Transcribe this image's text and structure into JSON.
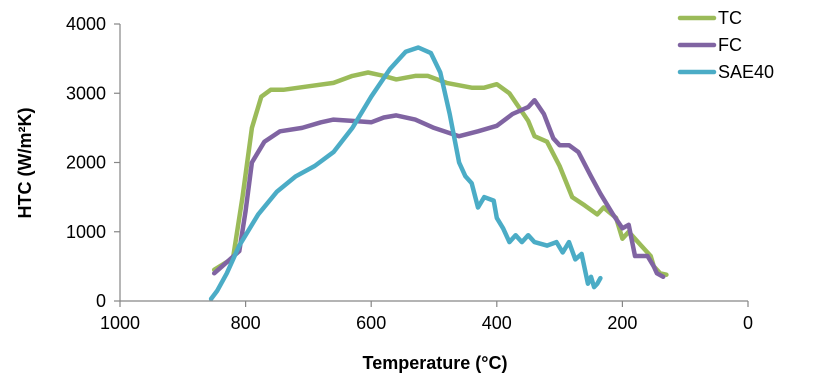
{
  "chart_data": {
    "type": "line",
    "title": "",
    "xlabel": "Temperature (°C)",
    "ylabel": "HTC (W/m²K)",
    "xlim": [
      1000,
      0
    ],
    "ylim": [
      0,
      4000
    ],
    "x_reversed": true,
    "x_ticks": [
      1000,
      800,
      600,
      400,
      200,
      0
    ],
    "y_ticks": [
      0,
      1000,
      2000,
      3000,
      4000
    ],
    "grid": false,
    "legend_position": "top-right",
    "series": [
      {
        "name": "TC",
        "color": "#9bbb59",
        "points": [
          [
            850,
            450
          ],
          [
            820,
            620
          ],
          [
            805,
            1500
          ],
          [
            790,
            2500
          ],
          [
            775,
            2950
          ],
          [
            760,
            3050
          ],
          [
            740,
            3050
          ],
          [
            700,
            3100
          ],
          [
            660,
            3150
          ],
          [
            630,
            3250
          ],
          [
            605,
            3300
          ],
          [
            580,
            3250
          ],
          [
            560,
            3200
          ],
          [
            530,
            3250
          ],
          [
            510,
            3250
          ],
          [
            480,
            3150
          ],
          [
            440,
            3080
          ],
          [
            420,
            3080
          ],
          [
            400,
            3130
          ],
          [
            380,
            3000
          ],
          [
            350,
            2600
          ],
          [
            340,
            2380
          ],
          [
            320,
            2300
          ],
          [
            300,
            1950
          ],
          [
            280,
            1500
          ],
          [
            260,
            1380
          ],
          [
            240,
            1250
          ],
          [
            230,
            1350
          ],
          [
            210,
            1200
          ],
          [
            200,
            900
          ],
          [
            190,
            1000
          ],
          [
            170,
            800
          ],
          [
            155,
            650
          ],
          [
            150,
            500
          ],
          [
            140,
            400
          ],
          [
            130,
            380
          ]
        ]
      },
      {
        "name": "FC",
        "color": "#8064a2",
        "points": [
          [
            850,
            400
          ],
          [
            830,
            560
          ],
          [
            810,
            720
          ],
          [
            800,
            1300
          ],
          [
            790,
            2000
          ],
          [
            770,
            2300
          ],
          [
            745,
            2450
          ],
          [
            710,
            2500
          ],
          [
            680,
            2580
          ],
          [
            660,
            2620
          ],
          [
            630,
            2600
          ],
          [
            600,
            2580
          ],
          [
            580,
            2650
          ],
          [
            560,
            2680
          ],
          [
            530,
            2620
          ],
          [
            500,
            2500
          ],
          [
            460,
            2380
          ],
          [
            430,
            2450
          ],
          [
            400,
            2530
          ],
          [
            375,
            2700
          ],
          [
            350,
            2800
          ],
          [
            340,
            2900
          ],
          [
            325,
            2700
          ],
          [
            310,
            2350
          ],
          [
            300,
            2250
          ],
          [
            285,
            2250
          ],
          [
            270,
            2150
          ],
          [
            250,
            1800
          ],
          [
            235,
            1550
          ],
          [
            215,
            1250
          ],
          [
            200,
            1050
          ],
          [
            190,
            1100
          ],
          [
            180,
            650
          ],
          [
            160,
            650
          ],
          [
            150,
            500
          ],
          [
            145,
            400
          ],
          [
            135,
            350
          ]
        ]
      },
      {
        "name": "SAE40",
        "color": "#4bacc6",
        "points": [
          [
            855,
            30
          ],
          [
            845,
            150
          ],
          [
            830,
            400
          ],
          [
            810,
            800
          ],
          [
            780,
            1250
          ],
          [
            750,
            1580
          ],
          [
            720,
            1800
          ],
          [
            690,
            1950
          ],
          [
            660,
            2150
          ],
          [
            630,
            2500
          ],
          [
            600,
            2950
          ],
          [
            570,
            3350
          ],
          [
            545,
            3600
          ],
          [
            525,
            3660
          ],
          [
            505,
            3580
          ],
          [
            490,
            3300
          ],
          [
            475,
            2700
          ],
          [
            460,
            2000
          ],
          [
            450,
            1800
          ],
          [
            440,
            1700
          ],
          [
            430,
            1350
          ],
          [
            420,
            1500
          ],
          [
            405,
            1450
          ],
          [
            400,
            1200
          ],
          [
            390,
            1050
          ],
          [
            380,
            850
          ],
          [
            370,
            950
          ],
          [
            360,
            850
          ],
          [
            350,
            950
          ],
          [
            340,
            850
          ],
          [
            320,
            800
          ],
          [
            305,
            850
          ],
          [
            295,
            700
          ],
          [
            285,
            850
          ],
          [
            275,
            600
          ],
          [
            265,
            680
          ],
          [
            255,
            250
          ],
          [
            250,
            350
          ],
          [
            245,
            200
          ],
          [
            240,
            250
          ],
          [
            235,
            330
          ]
        ]
      }
    ]
  }
}
